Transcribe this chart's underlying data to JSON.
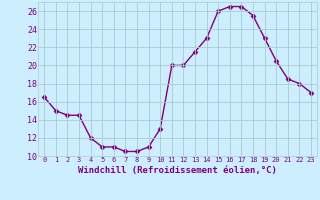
{
  "x": [
    0,
    1,
    2,
    3,
    4,
    5,
    6,
    7,
    8,
    9,
    10,
    11,
    12,
    13,
    14,
    15,
    16,
    17,
    18,
    19,
    20,
    21,
    22,
    23
  ],
  "y": [
    16.5,
    15.0,
    14.5,
    14.5,
    12.0,
    11.0,
    11.0,
    10.5,
    10.5,
    11.0,
    13.0,
    20.0,
    20.0,
    21.5,
    23.0,
    26.0,
    26.5,
    26.5,
    25.5,
    23.0,
    20.5,
    18.5,
    18.0,
    17.0
  ],
  "xlabel": "Windchill (Refroidissement éolien,°C)",
  "ylim": [
    10,
    27
  ],
  "xlim": [
    -0.5,
    23.5
  ],
  "yticks": [
    10,
    12,
    14,
    16,
    18,
    20,
    22,
    24,
    26
  ],
  "xticks": [
    0,
    1,
    2,
    3,
    4,
    5,
    6,
    7,
    8,
    9,
    10,
    11,
    12,
    13,
    14,
    15,
    16,
    17,
    18,
    19,
    20,
    21,
    22,
    23
  ],
  "line_color": "#800080",
  "marker_color": "#800080",
  "bg_color": "#cceeff",
  "grid_color": "#aacccc",
  "tick_label_color": "#800080",
  "axis_label_color": "#800080",
  "xtick_fontsize": 5.0,
  "ytick_fontsize": 6.0,
  "xlabel_fontsize": 6.5
}
